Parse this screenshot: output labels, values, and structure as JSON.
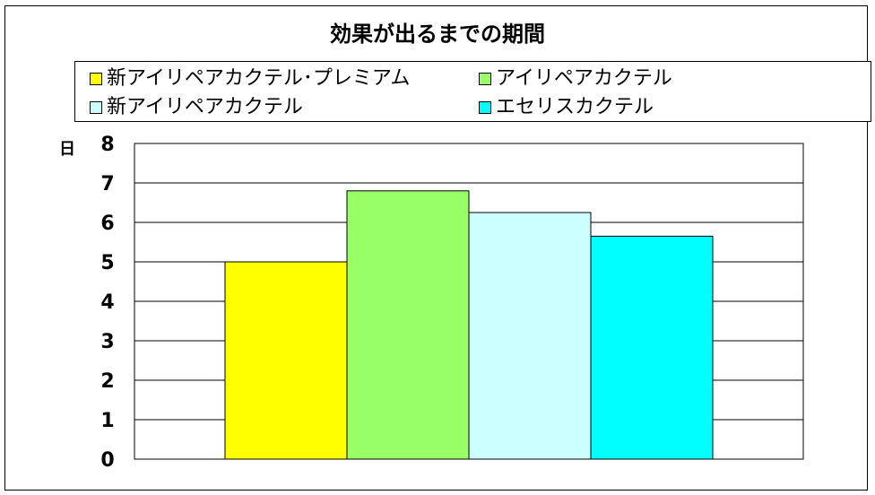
{
  "chart_data": {
    "type": "bar",
    "title": "効果が出るまでの期間",
    "ylabel": "日",
    "xlabel": "",
    "ylim": [
      0,
      8
    ],
    "yticks": [
      0,
      1,
      2,
      3,
      4,
      5,
      6,
      7,
      8
    ],
    "grid": true,
    "legend_position": "top",
    "series": [
      {
        "name": "新アイリペアカクテル･プレミアム",
        "value": 5.0,
        "color": "#FFFF00"
      },
      {
        "name": "アイリペアカクテル",
        "value": 6.8,
        "color": "#99FF66"
      },
      {
        "name": "新アイリペアカクテル",
        "value": 6.25,
        "color": "#CCFFFF"
      },
      {
        "name": "エセリスカクテル",
        "value": 5.65,
        "color": "#00FFFF"
      }
    ]
  }
}
